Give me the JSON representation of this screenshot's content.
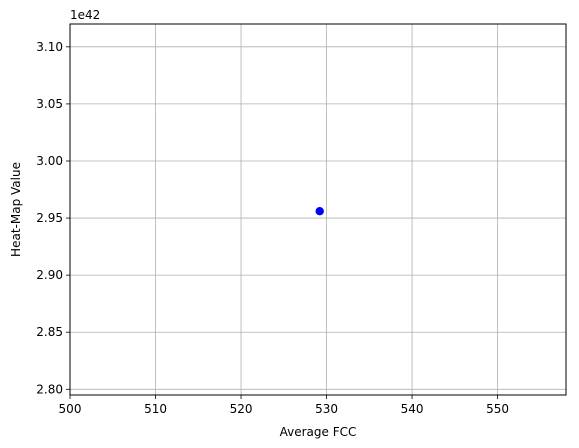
{
  "chart_data": {
    "type": "scatter",
    "title": "",
    "xlabel": "Average FCC",
    "ylabel": "Heat-Map Value",
    "y_offset_label": "1e42",
    "xlim": [
      500,
      558
    ],
    "ylim": [
      2.795,
      3.12
    ],
    "x_ticks": [
      500,
      510,
      520,
      530,
      540,
      550
    ],
    "x_tick_labels": [
      "500",
      "510",
      "520",
      "530",
      "540",
      "550"
    ],
    "y_ticks": [
      2.8,
      2.85,
      2.9,
      2.95,
      3.0,
      3.05,
      3.1
    ],
    "y_tick_labels": [
      "2.80",
      "2.85",
      "2.90",
      "2.95",
      "3.00",
      "3.05",
      "3.10"
    ],
    "grid": true,
    "series": [
      {
        "color": "#0000ff",
        "points": [
          {
            "x": 529.2,
            "y": 2.956
          }
        ]
      }
    ]
  }
}
